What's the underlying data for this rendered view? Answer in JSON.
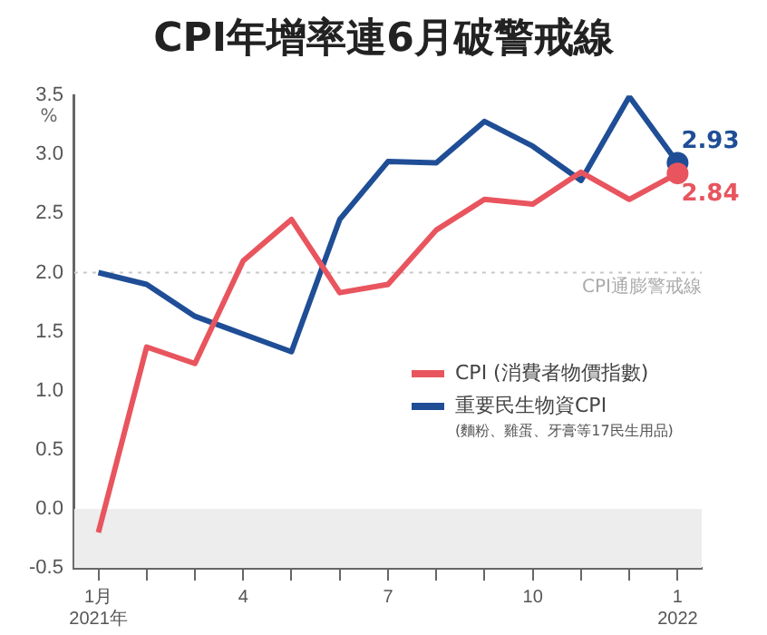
{
  "chart_data": {
    "type": "line",
    "title": "CPI年增率連6月破警戒線",
    "ylabel": "%",
    "categories": [
      "1月\n2021年",
      null,
      null,
      "4",
      null,
      null,
      "7",
      null,
      null,
      "10",
      null,
      null,
      "1\n2022"
    ],
    "series": [
      {
        "name": "CPI (消費者物價指數)",
        "color": "#e8555e",
        "values": [
          -0.2,
          1.37,
          1.23,
          2.1,
          2.45,
          1.83,
          1.9,
          2.36,
          2.62,
          2.58,
          2.85,
          2.62,
          2.84
        ],
        "value_labels": [
          null,
          null,
          null,
          null,
          null,
          null,
          null,
          null,
          null,
          null,
          null,
          null,
          "2.84"
        ]
      },
      {
        "name": "重要民生物資CPI",
        "color": "#1f4e96",
        "values": [
          2.0,
          1.9,
          1.63,
          1.48,
          1.33,
          2.45,
          2.94,
          2.93,
          3.28,
          3.07,
          2.78,
          3.49,
          2.93
        ],
        "value_labels": [
          null,
          null,
          null,
          null,
          null,
          null,
          null,
          null,
          null,
          null,
          null,
          null,
          "2.93"
        ]
      }
    ],
    "ylim": [
      -0.5,
      3.5
    ],
    "yticks": [
      {
        "value": -0.5,
        "label": "-0.5"
      },
      {
        "value": 0,
        "label": "0.0"
      },
      {
        "value": 0.5,
        "label": "0.5"
      },
      {
        "value": 1,
        "label": "1.0"
      },
      {
        "value": 1.5,
        "label": "1.5"
      },
      {
        "value": 2,
        "label": "2.0"
      },
      {
        "value": 2.5,
        "label": "2.5"
      },
      {
        "value": 3,
        "label": "3.0"
      },
      {
        "value": 3.5,
        "label": "3.5"
      }
    ],
    "ref_lines": [
      {
        "axis": "y",
        "value": 2,
        "label": "CPI通膨警戒線",
        "color": "#c8c8c8",
        "line_style": "dotted"
      }
    ],
    "bands": [
      {
        "axis": "y",
        "from": -0.5,
        "to": 0,
        "color": "#ededed"
      }
    ],
    "annotations": [
      "(麵粉、雞蛋、牙膏等17民生用品)"
    ],
    "grid": false,
    "legend": "bottom right"
  }
}
